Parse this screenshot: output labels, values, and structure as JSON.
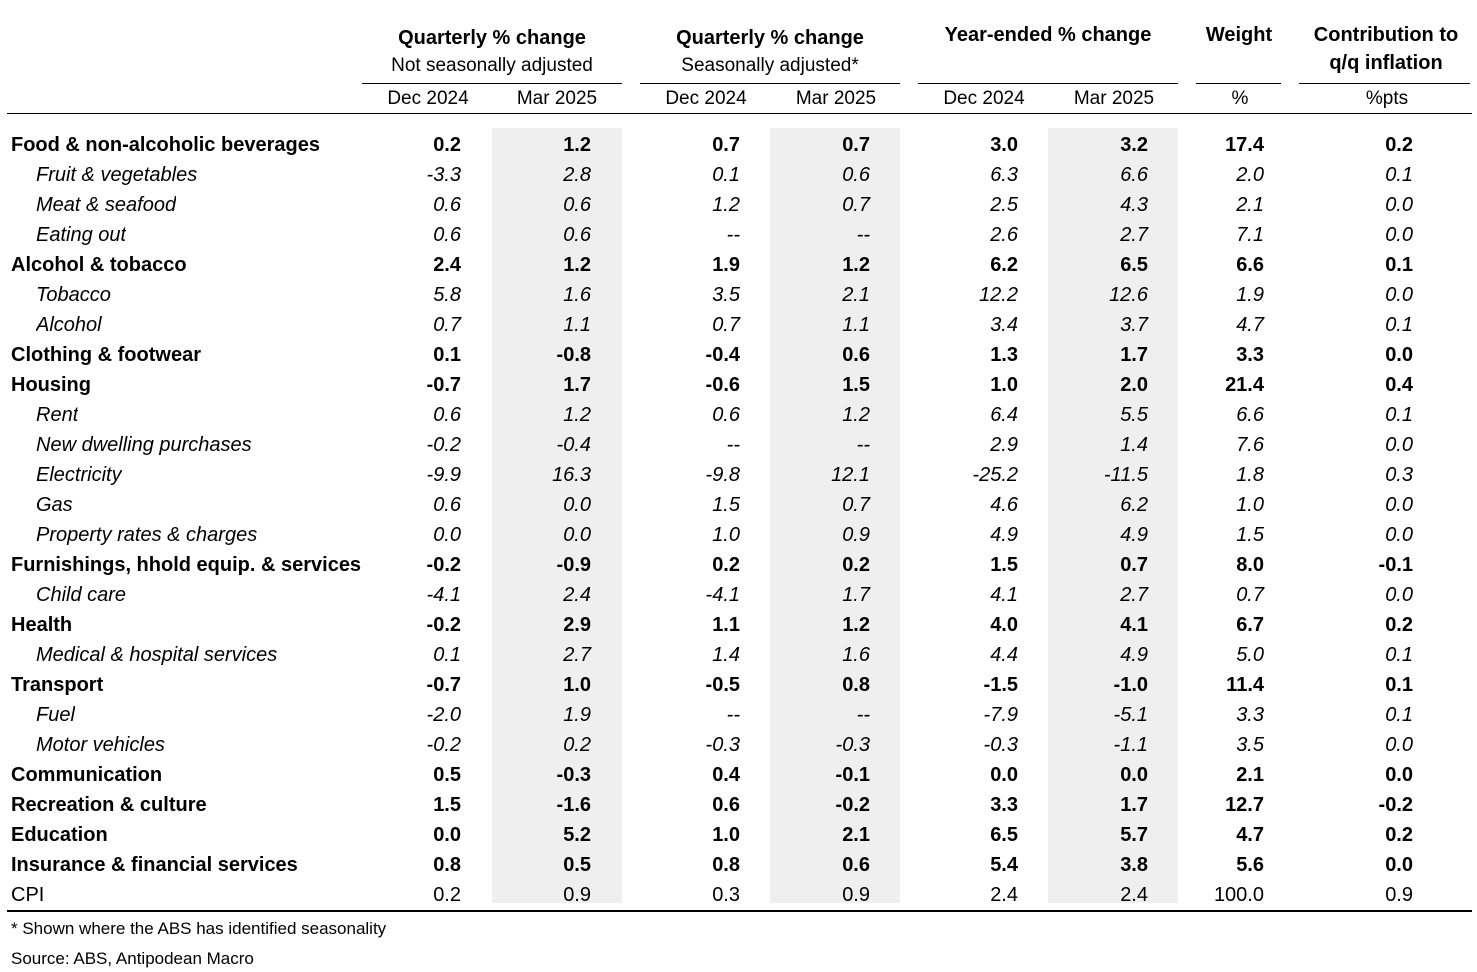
{
  "header": {
    "groups": [
      {
        "title": "Quarterly % change",
        "subtitle": "Not seasonally adjusted"
      },
      {
        "title": "Quarterly % change",
        "subtitle": "Seasonally adjusted*"
      },
      {
        "title": "Year-ended % change",
        "subtitle": ""
      },
      {
        "title": "Weight",
        "subtitle": ""
      },
      {
        "title": "Contribution to\nq/q inflation",
        "subtitle": ""
      }
    ],
    "columns": [
      "Dec 2024",
      "Mar 2025",
      "Dec 2024",
      "Mar 2025",
      "Dec 2024",
      "Mar 2025",
      "%",
      "%pts"
    ]
  },
  "rows": [
    {
      "label": "Food & non-alcoholic beverages",
      "style": "bold",
      "values": [
        "0.2",
        "1.2",
        "0.7",
        "0.7",
        "3.0",
        "3.2",
        "17.4",
        "0.2"
      ]
    },
    {
      "label": "Fruit & vegetables",
      "style": "italic",
      "values": [
        "-3.3",
        "2.8",
        "0.1",
        "0.6",
        "6.3",
        "6.6",
        "2.0",
        "0.1"
      ]
    },
    {
      "label": "Meat & seafood",
      "style": "italic",
      "values": [
        "0.6",
        "0.6",
        "1.2",
        "0.7",
        "2.5",
        "4.3",
        "2.1",
        "0.0"
      ]
    },
    {
      "label": "Eating out",
      "style": "italic",
      "values": [
        "0.6",
        "0.6",
        "--",
        "--",
        "2.6",
        "2.7",
        "7.1",
        "0.0"
      ]
    },
    {
      "label": "Alcohol & tobacco",
      "style": "bold",
      "values": [
        "2.4",
        "1.2",
        "1.9",
        "1.2",
        "6.2",
        "6.5",
        "6.6",
        "0.1"
      ]
    },
    {
      "label": "Tobacco",
      "style": "italic",
      "values": [
        "5.8",
        "1.6",
        "3.5",
        "2.1",
        "12.2",
        "12.6",
        "1.9",
        "0.0"
      ]
    },
    {
      "label": "Alcohol",
      "style": "italic",
      "values": [
        "0.7",
        "1.1",
        "0.7",
        "1.1",
        "3.4",
        "3.7",
        "4.7",
        "0.1"
      ]
    },
    {
      "label": "Clothing & footwear",
      "style": "bold",
      "values": [
        "0.1",
        "-0.8",
        "-0.4",
        "0.6",
        "1.3",
        "1.7",
        "3.3",
        "0.0"
      ]
    },
    {
      "label": "Housing",
      "style": "bold",
      "values": [
        "-0.7",
        "1.7",
        "-0.6",
        "1.5",
        "1.0",
        "2.0",
        "21.4",
        "0.4"
      ]
    },
    {
      "label": "Rent",
      "style": "italic",
      "values": [
        "0.6",
        "1.2",
        "0.6",
        "1.2",
        "6.4",
        "5.5",
        "6.6",
        "0.1"
      ]
    },
    {
      "label": "New dwelling purchases",
      "style": "italic",
      "values": [
        "-0.2",
        "-0.4",
        "--",
        "--",
        "2.9",
        "1.4",
        "7.6",
        "0.0"
      ]
    },
    {
      "label": "Electricity",
      "style": "italic",
      "values": [
        "-9.9",
        "16.3",
        "-9.8",
        "12.1",
        "-25.2",
        "-11.5",
        "1.8",
        "0.3"
      ]
    },
    {
      "label": "Gas",
      "style": "italic",
      "values": [
        "0.6",
        "0.0",
        "1.5",
        "0.7",
        "4.6",
        "6.2",
        "1.0",
        "0.0"
      ]
    },
    {
      "label": "Property rates & charges",
      "style": "italic",
      "values": [
        "0.0",
        "0.0",
        "1.0",
        "0.9",
        "4.9",
        "4.9",
        "1.5",
        "0.0"
      ]
    },
    {
      "label": "Furnishings, hhold equip. & services",
      "style": "bold",
      "values": [
        "-0.2",
        "-0.9",
        "0.2",
        "0.2",
        "1.5",
        "0.7",
        "8.0",
        "-0.1"
      ]
    },
    {
      "label": "Child care",
      "style": "italic",
      "values": [
        "-4.1",
        "2.4",
        "-4.1",
        "1.7",
        "4.1",
        "2.7",
        "0.7",
        "0.0"
      ]
    },
    {
      "label": "Health",
      "style": "bold",
      "values": [
        "-0.2",
        "2.9",
        "1.1",
        "1.2",
        "4.0",
        "4.1",
        "6.7",
        "0.2"
      ]
    },
    {
      "label": "Medical & hospital services",
      "style": "italic",
      "values": [
        "0.1",
        "2.7",
        "1.4",
        "1.6",
        "4.4",
        "4.9",
        "5.0",
        "0.1"
      ]
    },
    {
      "label": "Transport",
      "style": "bold",
      "values": [
        "-0.7",
        "1.0",
        "-0.5",
        "0.8",
        "-1.5",
        "-1.0",
        "11.4",
        "0.1"
      ]
    },
    {
      "label": "Fuel",
      "style": "italic",
      "values": [
        "-2.0",
        "1.9",
        "--",
        "--",
        "-7.9",
        "-5.1",
        "3.3",
        "0.1"
      ]
    },
    {
      "label": "Motor vehicles",
      "style": "italic",
      "values": [
        "-0.2",
        "0.2",
        "-0.3",
        "-0.3",
        "-0.3",
        "-1.1",
        "3.5",
        "0.0"
      ]
    },
    {
      "label": "Communication",
      "style": "bold",
      "values": [
        "0.5",
        "-0.3",
        "0.4",
        "-0.1",
        "0.0",
        "0.0",
        "2.1",
        "0.0"
      ]
    },
    {
      "label": "Recreation & culture",
      "style": "bold",
      "values": [
        "1.5",
        "-1.6",
        "0.6",
        "-0.2",
        "3.3",
        "1.7",
        "12.7",
        "-0.2"
      ]
    },
    {
      "label": "Education",
      "style": "bold",
      "values": [
        "0.0",
        "5.2",
        "1.0",
        "2.1",
        "6.5",
        "5.7",
        "4.7",
        "0.2"
      ]
    },
    {
      "label": "Insurance & financial services",
      "style": "bold",
      "values": [
        "0.8",
        "0.5",
        "0.8",
        "0.6",
        "5.4",
        "3.8",
        "5.6",
        "0.0"
      ]
    },
    {
      "label": "CPI",
      "style": "normal",
      "values": [
        "0.2",
        "0.9",
        "0.3",
        "0.9",
        "2.4",
        "2.4",
        "100.0",
        "0.9"
      ]
    }
  ],
  "footnotes": [
    "* Shown where the ABS has identified seasonality",
    "Source: ABS, Antipodean Macro"
  ],
  "colors": {
    "shade": "#efefef",
    "rule": "#000000"
  },
  "chart_data": {
    "type": "table",
    "columns": [
      "Dec 2024",
      "Mar 2025",
      "Dec 2024",
      "Mar 2025",
      "Dec 2024",
      "Mar 2025",
      "%",
      "%pts"
    ],
    "shaded_columns": [
      1,
      3,
      5
    ]
  }
}
